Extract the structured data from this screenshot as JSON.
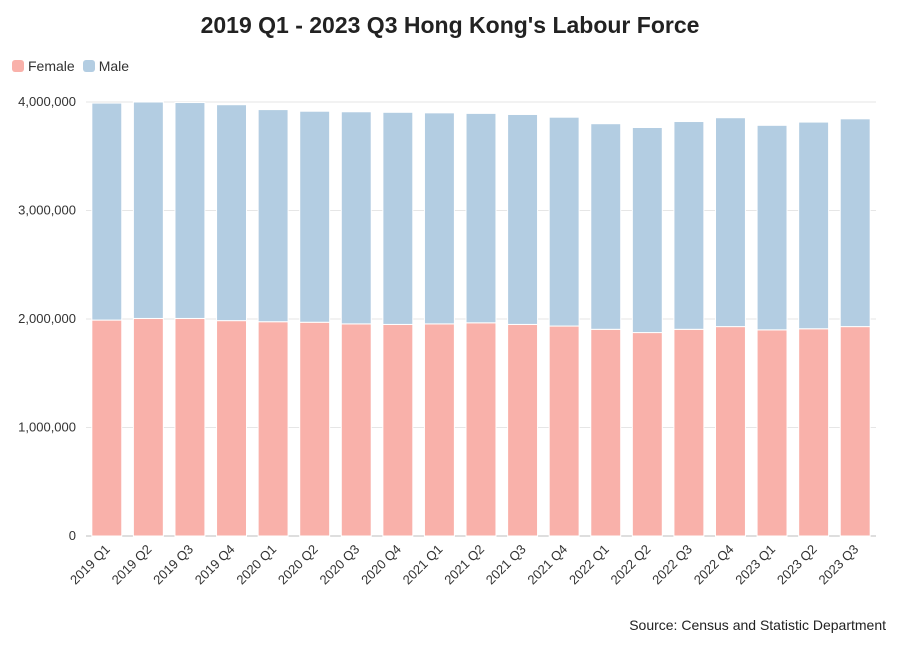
{
  "chart_data": {
    "type": "bar",
    "stacked": true,
    "title": "2019 Q1 - 2023 Q3 Hong Kong's Labour Force",
    "source": "Source: Census and Statistic Department",
    "categories": [
      "2019 Q1",
      "2019 Q2",
      "2019 Q3",
      "2019 Q4",
      "2020 Q1",
      "2020 Q2",
      "2020 Q3",
      "2020 Q4",
      "2021 Q1",
      "2021 Q2",
      "2021 Q3",
      "2021 Q4",
      "2022 Q1",
      "2022 Q2",
      "2022 Q3",
      "2022 Q4",
      "2023 Q1",
      "2023 Q2",
      "2023 Q3"
    ],
    "series": [
      {
        "name": "Female",
        "color": "#f9b1aa",
        "values": [
          1990000,
          2005000,
          2005000,
          1985000,
          1975000,
          1970000,
          1955000,
          1950000,
          1955000,
          1965000,
          1950000,
          1935000,
          1905000,
          1875000,
          1905000,
          1930000,
          1900000,
          1910000,
          1930000
        ]
      },
      {
        "name": "Male",
        "color": "#b3cde2",
        "values": [
          2000000,
          1995000,
          1990000,
          1990000,
          1955000,
          1945000,
          1955000,
          1955000,
          1945000,
          1930000,
          1935000,
          1925000,
          1895000,
          1890000,
          1915000,
          1925000,
          1885000,
          1905000,
          1915000
        ]
      }
    ],
    "ylim": [
      0,
      4000000
    ],
    "yticks": [
      0,
      1000000,
      2000000,
      3000000,
      4000000
    ],
    "ytick_labels": [
      "0",
      "1,000,000",
      "2,000,000",
      "3,000,000",
      "4,000,000"
    ],
    "xlabel": "",
    "ylabel": "",
    "grid": true,
    "legend_position": "top-left"
  }
}
